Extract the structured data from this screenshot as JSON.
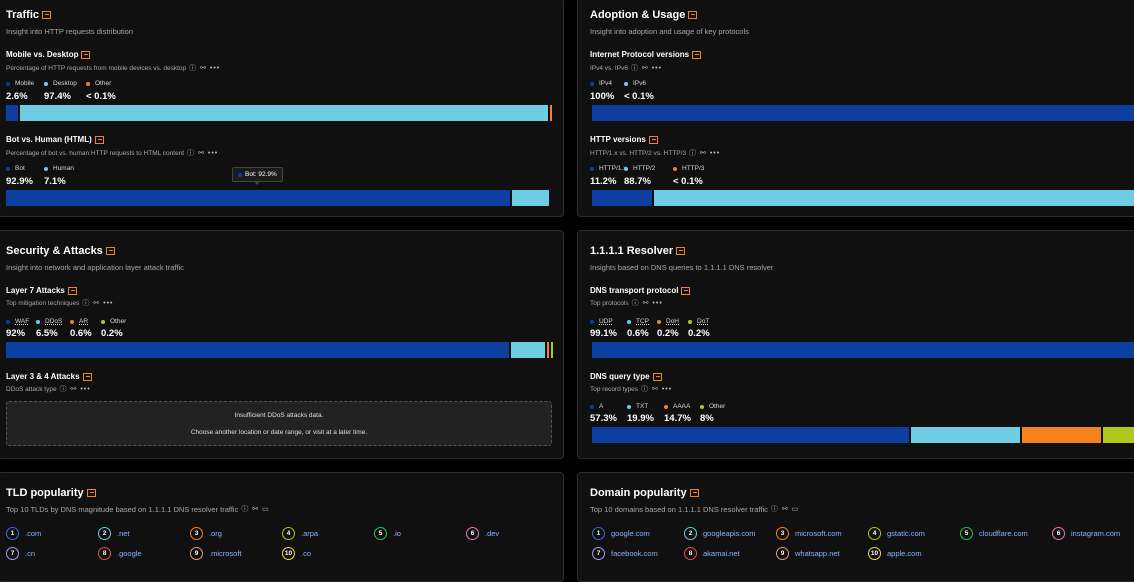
{
  "colors": {
    "primary": "#0c3fa0",
    "secondary": "#6ecde3",
    "tertiary": "#f6821f",
    "quaternary": "#b0c81c",
    "accent": "#f6821f"
  },
  "traffic": {
    "title": "Traffic",
    "subtitle": "Insight into HTTP requests distribution",
    "mobile": {
      "title": "Mobile vs. Desktop",
      "subtitle": "Percentage of HTTP requests from mobile devices vs. desktop",
      "legend": [
        "Mobile",
        "Desktop",
        "Other"
      ],
      "values": [
        "2.6%",
        "97.4%",
        "< 0.1%"
      ],
      "shares": [
        2.6,
        97.4,
        0.1
      ]
    },
    "bot": {
      "title": "Bot vs. Human (HTML)",
      "subtitle": "Percentage of bot vs. human HTTP requests to HTML content",
      "legend": [
        "Bot",
        "Human"
      ],
      "values": [
        "92.9%",
        "7.1%"
      ],
      "shares": [
        92.9,
        7.1
      ],
      "tooltip": "Bot: 92.9%"
    }
  },
  "adoption": {
    "title": "Adoption & Usage",
    "subtitle": "Insight into adoption and usage of key protocols",
    "ip": {
      "title": "Internet Protocol versions",
      "subtitle": "IPv4 vs. IPv6",
      "legend": [
        "IPv4",
        "IPv6"
      ],
      "values": [
        "100%",
        "< 0.1%"
      ],
      "shares": [
        100,
        0
      ]
    },
    "http": {
      "title": "HTTP versions",
      "subtitle": "HTTP/1.x vs. HTTP/2 vs. HTTP/3",
      "legend": [
        "HTTP/1.x",
        "HTTP/2",
        "HTTP/3"
      ],
      "values": [
        "11.2%",
        "88.7%",
        "< 0.1%"
      ],
      "shares": [
        11.2,
        88.7,
        0.1
      ]
    }
  },
  "security": {
    "title": "Security & Attacks",
    "subtitle": "Insight into network and application layer attack traffic",
    "l7": {
      "title": "Layer 7 Attacks",
      "subtitle": "Top mitigation techniques",
      "legend": [
        "WAF",
        "DDoS",
        "AR",
        "Other"
      ],
      "values": [
        "92%",
        "6.5%",
        "0.6%",
        "0.2%"
      ],
      "shares": [
        92,
        6.5,
        0.6,
        0.2
      ]
    },
    "l34": {
      "title": "Layer 3 & 4 Attacks",
      "subtitle": "DDoS attack type",
      "nodata_line1": "Insufficient DDoS attacks data.",
      "nodata_line2": "Choose another location or date range, or visit at a later time."
    }
  },
  "resolver": {
    "title": "1.1.1.1 Resolver",
    "subtitle": "Insights based on DNS queries to 1.1.1.1 DNS resolver",
    "transport": {
      "title": "DNS transport protocol",
      "subtitle": "Top protocols",
      "legend": [
        "UDP",
        "TCP",
        "DoH",
        "DoT"
      ],
      "values": [
        "99.1%",
        "0.6%",
        "0.2%",
        "0.2%"
      ],
      "shares": [
        99.1,
        0.6,
        0.2,
        0.2
      ]
    },
    "query": {
      "title": "DNS query type",
      "subtitle": "Top record types",
      "legend": [
        "A",
        "TXT",
        "AAAA",
        "Other"
      ],
      "values": [
        "57.3%",
        "19.9%",
        "14.7%",
        "8%"
      ],
      "shares": [
        57.3,
        19.9,
        14.7,
        8
      ]
    }
  },
  "tld": {
    "title": "TLD popularity",
    "subtitle": "Top 10 TLDs by DNS magnitude based on 1.1.1.1 DNS resolver traffic",
    "items": [
      ".com",
      ".net",
      ".org",
      ".arpa",
      ".io",
      ".dev",
      ".cn",
      ".google",
      ".microsoft",
      ".co"
    ]
  },
  "domain": {
    "title": "Domain popularity",
    "subtitle": "Top 10 domains based on 1.1.1.1 DNS resolver traffic",
    "items": [
      "google.com",
      "googleapis.com",
      "microsoft.com",
      "gstatic.com",
      "cloudflare.com",
      "instagram.com",
      "facebook.com",
      "akamai.net",
      "whatsapp.net",
      "apple.com"
    ]
  },
  "rank_numbers": [
    "1",
    "2",
    "3",
    "4",
    "5",
    "6",
    "7",
    "8",
    "9",
    "10"
  ]
}
